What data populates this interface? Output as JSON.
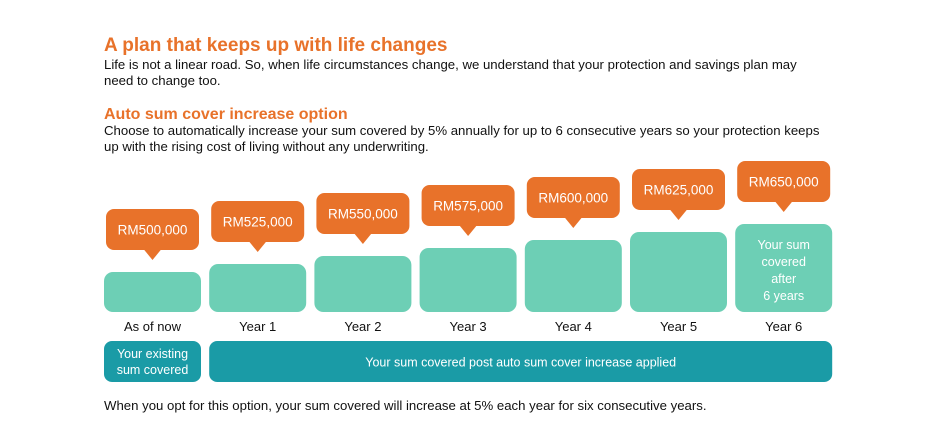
{
  "heading": "A plan that keeps up with life changes",
  "intro": "Life is not a linear road. So, when life circumstances change, we understand that your protection and savings plan may need to change too.",
  "subheading": "Auto sum cover increase option",
  "description": "Choose to automatically increase your sum covered by 5% annually for up to 6 consecutive years so your protection keeps up with the rising cost of living without any underwriting.",
  "footnote": "When you opt for this option, your sum covered will increase at 5% each year for six consecutive years.",
  "colors": {
    "accent": "#E8722A",
    "bar": "#6DCFB5",
    "band": "#1A9BA6"
  },
  "chart_data": {
    "type": "bar",
    "categories": [
      "As of now",
      "Year 1",
      "Year 2",
      "Year 3",
      "Year 4",
      "Year 5",
      "Year 6"
    ],
    "values": [
      500000,
      525000,
      550000,
      575000,
      600000,
      625000,
      650000
    ],
    "data_labels": [
      "RM500,000",
      "RM525,000",
      "RM550,000",
      "RM575,000",
      "RM600,000",
      "RM625,000",
      "RM650,000"
    ],
    "bar_annotation": [
      "Your sum",
      "covered",
      "after",
      "6 years"
    ],
    "bands": [
      {
        "label": [
          "Your existing",
          "sum covered"
        ],
        "span": [
          0,
          0
        ]
      },
      {
        "label": [
          "Your sum covered post auto sum cover increase applied"
        ],
        "span": [
          1,
          6
        ]
      }
    ]
  }
}
